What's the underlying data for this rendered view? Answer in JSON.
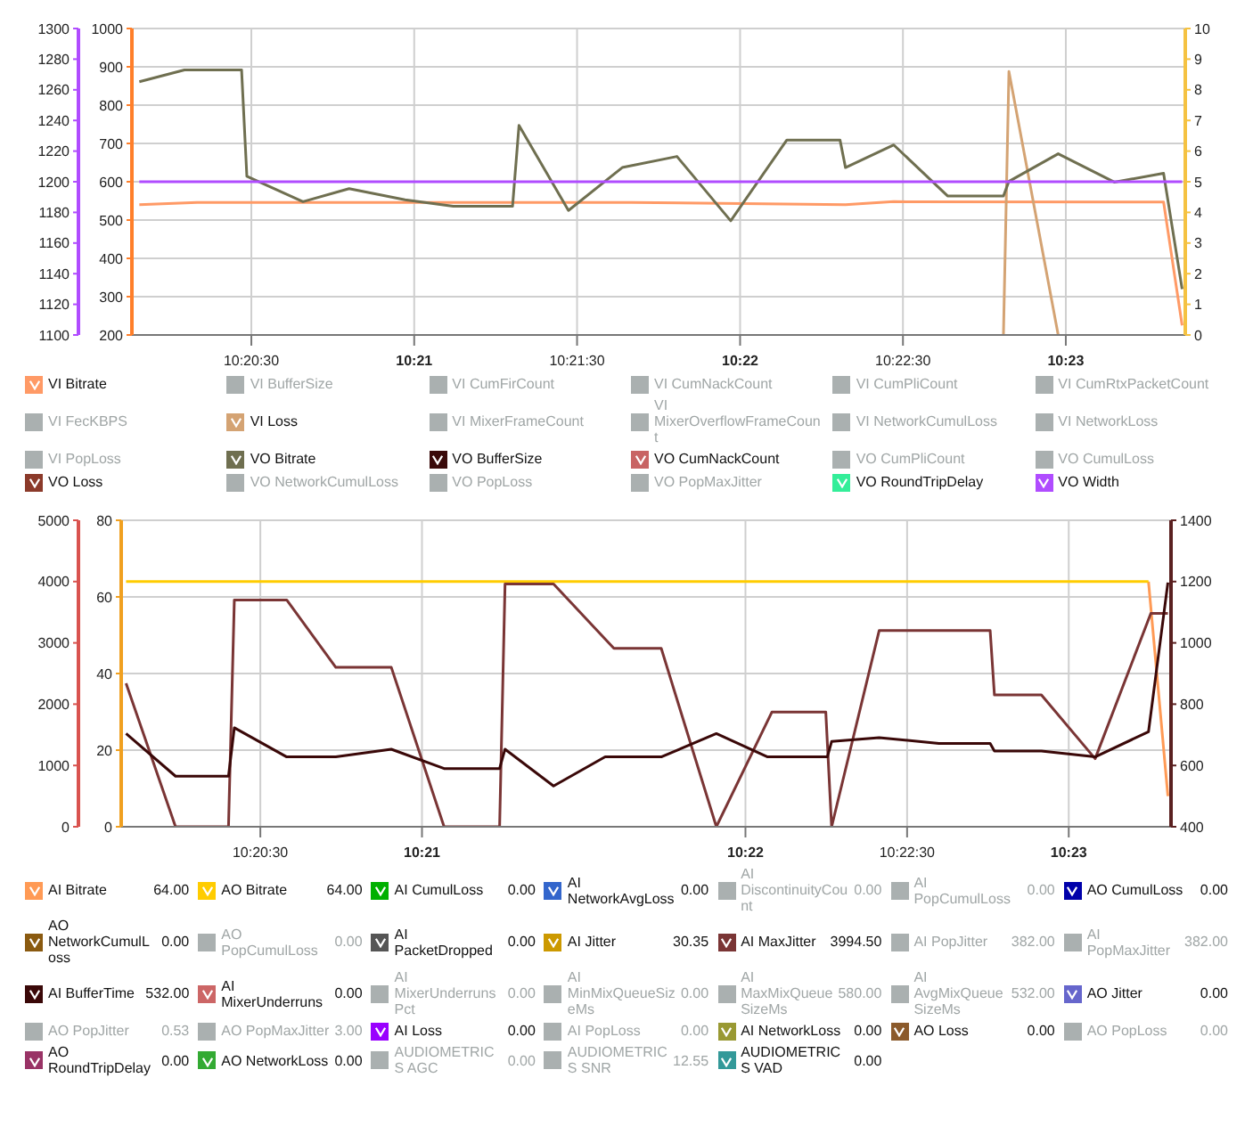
{
  "chart_data": [
    {
      "type": "line",
      "legend": "bottom",
      "grid": true,
      "xlim": [
        10.33556,
        10.38944
      ],
      "xticks": [
        {
          "value": 10.34167,
          "label": "10:20:30"
        },
        {
          "value": 10.35,
          "label": "10:21"
        },
        {
          "value": 10.35833,
          "label": "10:21:30"
        },
        {
          "value": 10.36667,
          "label": "10:22"
        },
        {
          "value": 10.375,
          "label": "10:22:30"
        },
        {
          "value": 10.38333,
          "label": "10:23"
        }
      ],
      "ylim": [
        200,
        1000
      ],
      "yticks": [
        200,
        300,
        400,
        500,
        600,
        700,
        800,
        900,
        1000
      ],
      "y2lim": [
        0,
        10
      ],
      "y2ticks": [
        0,
        1,
        2,
        3,
        4,
        5,
        6,
        7,
        8,
        9,
        10
      ],
      "y3lim": [
        1100,
        1300
      ],
      "y3ticks": [
        1100,
        1120,
        1140,
        1160,
        1180,
        1200,
        1220,
        1240,
        1260,
        1280,
        1300
      ],
      "series": [
        {
          "name": "VI Bitrate",
          "color": "#ff9a66",
          "x": [
            10.33594,
            10.33889,
            10.36111,
            10.37206,
            10.37453,
            10.38833,
            10.38928
          ],
          "values": [
            540,
            546,
            546,
            540,
            548,
            547,
            225
          ]
        },
        {
          "name": "VI BufferSize",
          "color": "#aab0b0"
        },
        {
          "name": "VI CumFirCount",
          "color": "#aab0b0"
        },
        {
          "name": "VI CumNackCount",
          "color": "#aab0b0"
        },
        {
          "name": "VI CumPliCount",
          "color": "#aab0b0"
        },
        {
          "name": "VI CumRtxPacketCount",
          "color": "#aab0b0"
        },
        {
          "name": "VI FecKBPS",
          "color": "#aab0b0"
        },
        {
          "name": "VI Loss",
          "color": "#d4a373",
          "axis": "y2",
          "x": [
            10.38014,
            10.38042,
            10.38294
          ],
          "values": [
            0,
            8.6,
            0
          ]
        },
        {
          "name": "VI MixerFrameCount",
          "color": "#aab0b0"
        },
        {
          "name": "VI MixerOverflowFrameCount",
          "color": "#aab0b0"
        },
        {
          "name": "VI NetworkCumulLoss",
          "color": "#aab0b0"
        },
        {
          "name": "VI NetworkLoss",
          "color": "#aab0b0"
        },
        {
          "name": "VI PopLoss",
          "color": "#aab0b0"
        },
        {
          "name": "VO Bitrate",
          "color": "#6f6f50",
          "x": [
            10.33594,
            10.33825,
            10.34117,
            10.34144,
            10.34431,
            10.34667,
            10.34953,
            10.352,
            10.35503,
            10.35536,
            10.35789,
            10.36064,
            10.36344,
            10.36619,
            10.36906,
            10.37178,
            10.37206,
            10.37453,
            10.37728,
            10.38014,
            10.38042,
            10.38294,
            10.38581,
            10.38833,
            10.38928
          ],
          "values": [
            861,
            892,
            892,
            614,
            548,
            582,
            553,
            536,
            536,
            747,
            525,
            637,
            666,
            498,
            709,
            709,
            637,
            696,
            563,
            563,
            601,
            673,
            599,
            622,
            320
          ]
        },
        {
          "name": "VO BufferSize",
          "color": "#3a0a0a"
        },
        {
          "name": "VO CumNackCount",
          "color": "#c86464"
        },
        {
          "name": "VO CumPliCount",
          "color": "#aab0b0"
        },
        {
          "name": "VO CumulLoss",
          "color": "#aab0b0"
        },
        {
          "name": "VO Loss",
          "color": "#8b3a2a"
        },
        {
          "name": "VO NetworkCumulLoss",
          "color": "#aab0b0"
        },
        {
          "name": "VO PopLoss",
          "color": "#aab0b0"
        },
        {
          "name": "VO PopMaxJitter",
          "color": "#aab0b0"
        },
        {
          "name": "VO RoundTripDelay",
          "color": "#33ee99"
        },
        {
          "name": "VO Width",
          "color": "#b04cff",
          "axis": "y3",
          "x": [
            10.33594,
            10.38928
          ],
          "values": [
            1200,
            1200
          ]
        }
      ]
    },
    {
      "type": "line",
      "legend": "bottom",
      "grid": true,
      "xlim": [
        10.3345,
        10.3886
      ],
      "xticks": [
        {
          "value": 10.34167,
          "label": "10:20:30"
        },
        {
          "value": 10.35,
          "label": "10:21"
        },
        {
          "value": 10.36667,
          "label": "10:22"
        },
        {
          "value": 10.375,
          "label": "10:22:30"
        },
        {
          "value": 10.38333,
          "label": "10:23"
        }
      ],
      "ylim": [
        0,
        80
      ],
      "yticks": [
        0,
        20,
        40,
        60,
        80
      ],
      "y2lim": [
        400,
        1400
      ],
      "y2ticks": [
        400,
        600,
        800,
        1000,
        1200,
        1400
      ],
      "y3lim": [
        0,
        5000
      ],
      "y3ticks": [
        0,
        1000,
        2000,
        3000,
        4000,
        5000
      ],
      "annotations": [
        "64.00",
        "64.00",
        "0.00",
        "0.00",
        "0.00",
        "0.00",
        "0.00",
        "0.00",
        "0.00",
        "0.00",
        "30.35",
        "3994.50",
        "382.00",
        "382.00",
        "532.00",
        "0.00",
        "0.00",
        "0.00",
        "580.00",
        "532.00",
        "0.00",
        "0.53",
        "3.00",
        "0.00",
        "0.00",
        "0.00",
        "0.00",
        "0.00",
        "0.00",
        "0.00",
        "0.00",
        "12.55",
        "0.00"
      ],
      "series": [
        {
          "name": "AI Bitrate",
          "color": "#ff9a55",
          "x": [
            10.38744,
            10.38844
          ],
          "values": [
            64,
            8
          ]
        },
        {
          "name": "AO Bitrate",
          "color": "#ffcc00",
          "x": [
            10.33475,
            10.38744
          ],
          "values": [
            64,
            64
          ]
        },
        {
          "name": "AI CumulLoss",
          "color": "#00b000"
        },
        {
          "name": "AI NetworkAvgLoss",
          "color": "#3366cc"
        },
        {
          "name": "AI DiscontinuityCount",
          "color": "#aab0b0"
        },
        {
          "name": "AI PopCumulLoss",
          "color": "#aab0b0"
        },
        {
          "name": "AO CumulLoss",
          "color": "#0000aa"
        },
        {
          "name": "AO NetworkCumulLoss",
          "color": "#8a5a10"
        },
        {
          "name": "AO PopCumulLoss",
          "color": "#aab0b0"
        },
        {
          "name": "AI PacketDropped",
          "color": "#555555"
        },
        {
          "name": "AI Jitter",
          "color": "#cc9900"
        },
        {
          "name": "AI MaxJitter",
          "color": "#7a3535",
          "axis": "y3",
          "x": [
            10.33475,
            10.3373,
            10.34003,
            10.34033,
            10.34303,
            10.34556,
            10.34842,
            10.35114,
            10.354,
            10.35428,
            10.35678,
            10.35989,
            10.36233,
            10.36517,
            10.36803,
            10.37081,
            10.37111,
            10.37356,
            10.37928,
            10.3795,
            10.38192,
            10.38469,
            10.38756,
            10.38844
          ],
          "values": [
            2340,
            0,
            0,
            3700,
            3700,
            2600,
            2600,
            0,
            0,
            3960,
            3960,
            2910,
            2910,
            0,
            1870,
            1870,
            0,
            3200,
            3200,
            2150,
            2150,
            1110,
            3480,
            3480
          ]
        },
        {
          "name": "AI PopJitter",
          "color": "#aab0b0"
        },
        {
          "name": "AI PopMaxJitter",
          "color": "#aab0b0"
        },
        {
          "name": "AI BufferTime",
          "color": "#3a0808",
          "axis": "y2",
          "x": [
            10.33475,
            10.3373,
            10.34003,
            10.34033,
            10.34303,
            10.34556,
            10.34842,
            10.35114,
            10.354,
            10.35428,
            10.35678,
            10.35944,
            10.36233,
            10.36517,
            10.36781,
            10.37089,
            10.37111,
            10.37356,
            10.37664,
            10.37928,
            10.3795,
            10.38192,
            10.38469,
            10.38744,
            10.38844
          ],
          "values": [
            704,
            565,
            565,
            723,
            628,
            628,
            653,
            590,
            590,
            653,
            533,
            628,
            628,
            704,
            628,
            628,
            678,
            691,
            672,
            672,
            647,
            647,
            628,
            710,
            1197
          ]
        },
        {
          "name": "AI MixerUnderruns",
          "color": "#cc6666"
        },
        {
          "name": "AI MixerUnderrunsPct",
          "color": "#aab0b0"
        },
        {
          "name": "AI MinMixQueueSizeMs",
          "color": "#aab0b0"
        },
        {
          "name": "AI MaxMixQueueSizeMs",
          "color": "#aab0b0"
        },
        {
          "name": "AI AvgMixQueueSizeMs",
          "color": "#aab0b0"
        },
        {
          "name": "AO Jitter",
          "color": "#6666cc"
        },
        {
          "name": "AO PopJitter",
          "color": "#aab0b0"
        },
        {
          "name": "AO PopMaxJitter",
          "color": "#aab0b0"
        },
        {
          "name": "AI Loss",
          "color": "#9900ff"
        },
        {
          "name": "AI PopLoss",
          "color": "#aab0b0"
        },
        {
          "name": "AI NetworkLoss",
          "color": "#999933"
        },
        {
          "name": "AO Loss",
          "color": "#8b5a2b"
        },
        {
          "name": "AO PopLoss",
          "color": "#aab0b0"
        },
        {
          "name": "AO RoundTripDelay",
          "color": "#993366"
        },
        {
          "name": "AO NetworkLoss",
          "color": "#33aa33"
        },
        {
          "name": "AUDIOMETRICS AGC",
          "color": "#aab0b0"
        },
        {
          "name": "AUDIOMETRICS SNR",
          "color": "#aab0b0"
        },
        {
          "name": "AUDIOMETRICS VAD",
          "color": "#339999"
        }
      ]
    }
  ]
}
